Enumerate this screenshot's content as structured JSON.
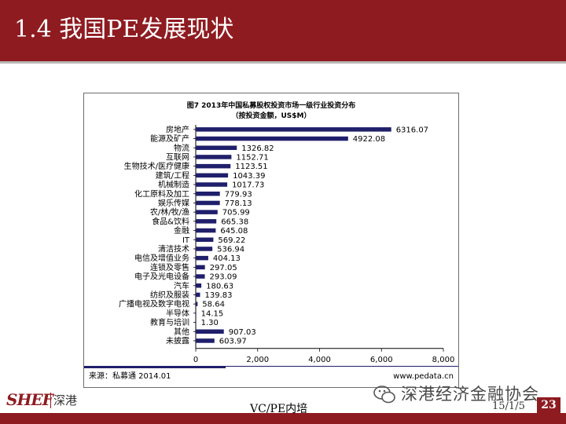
{
  "slide": {
    "title": "1.4 我国PE发展现状",
    "footer_center": "VC/PE内培",
    "footer_date": "15/1/5",
    "page_number": "23",
    "watermark": "深港经济金融协会",
    "logo_text": "SHEF",
    "logo_cn": "深港"
  },
  "colors": {
    "brand_red": "#8e1b20",
    "bar": "#1f1f6b"
  },
  "chart_data": {
    "type": "bar",
    "orientation": "horizontal",
    "title": "图7 2013年中国私募股权投资市场一级行业投资分布",
    "subtitle": "（按投资金额，US$M）",
    "categories": [
      "房地产",
      "能源及矿产",
      "物流",
      "互联网",
      "生物技术/医疗健康",
      "建筑/工程",
      "机械制造",
      "化工原料及加工",
      "娱乐传媒",
      "农/林/牧/渔",
      "食品&饮料",
      "金融",
      "IT",
      "清洁技术",
      "电信及增值业务",
      "连锁及零售",
      "电子及光电设备",
      "汽车",
      "纺织及服装",
      "广播电视及数字电视",
      "半导体",
      "教育与培训",
      "其他",
      "未披露"
    ],
    "values": [
      6316.07,
      4922.08,
      1326.82,
      1152.71,
      1123.51,
      1043.39,
      1017.73,
      779.93,
      778.13,
      705.99,
      665.38,
      645.08,
      569.22,
      536.94,
      404.13,
      297.05,
      293.09,
      180.63,
      139.83,
      58.64,
      14.15,
      1.3,
      907.03,
      603.97
    ],
    "value_labels": [
      "6316.07",
      "4922.08",
      "1326.82",
      "1152.71",
      "1123.51",
      "1043.39",
      "1017.73",
      "779.93",
      "778.13",
      "705.99",
      "665.38",
      "645.08",
      "569.22",
      "536.94",
      "404.13",
      "297.05",
      "293.09",
      "180.63",
      "139.83",
      "58.64",
      "14.15",
      "1.30",
      "907.03",
      "603.97"
    ],
    "x_ticks": [
      "0",
      "2,000",
      "4,000",
      "6,000",
      "8,000"
    ],
    "xlim": [
      0,
      8000
    ],
    "source": "来源：私募通 2014.01",
    "source_url": "www.pedata.cn",
    "grid": false
  }
}
